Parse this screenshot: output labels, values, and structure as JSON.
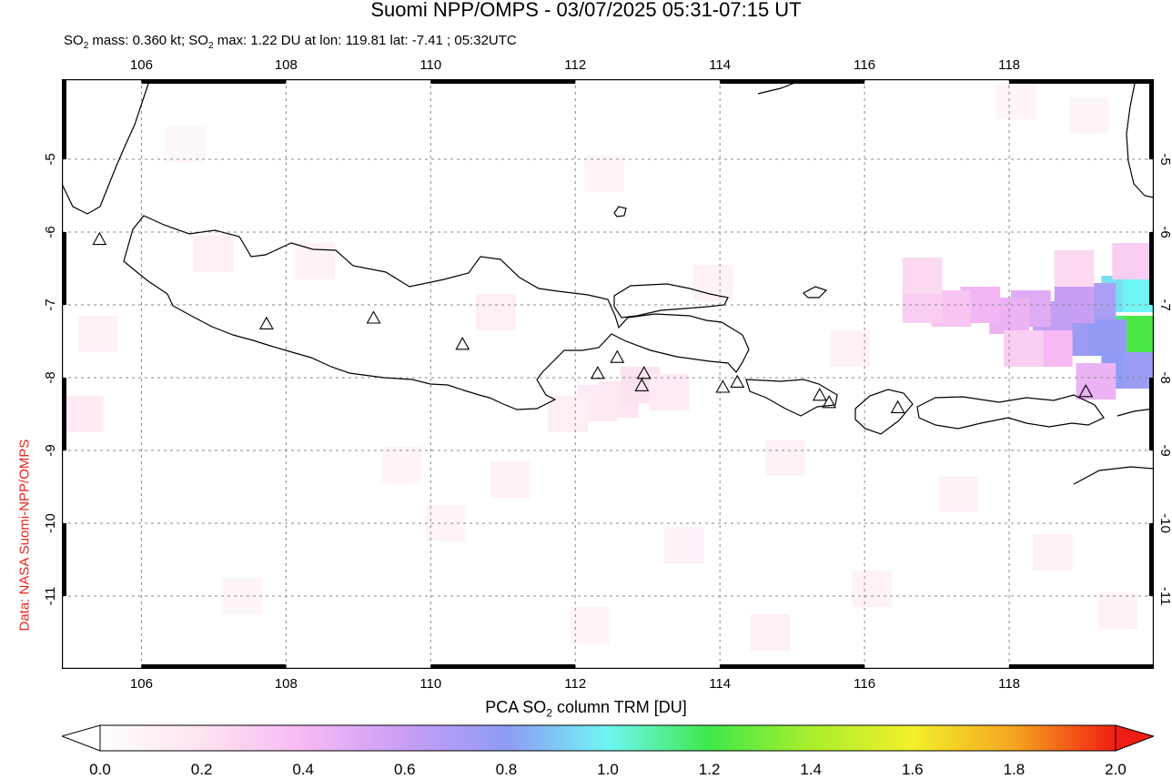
{
  "title": "Suomi NPP/OMPS - 03/07/2025 05:31-07:15 UT",
  "subtitle": {
    "mass_prefix": "SO",
    "mass_sub": "2",
    "mass_text": " mass: 0.360 kt; SO",
    "max_sub": "2",
    "max_text": " max: 1.22 DU at lon: 119.81 lat: -7.41 ; 05:32UTC"
  },
  "credit": "Data: NASA Suomi-NPP/OMPS",
  "map": {
    "lon_range": [
      104.9,
      120.0
    ],
    "lat_range": [
      -12.0,
      -3.9
    ],
    "lon_ticks": [
      106,
      108,
      110,
      112,
      114,
      116,
      118
    ],
    "lat_ticks": [
      -5,
      -6,
      -7,
      -8,
      -9,
      -10,
      -11
    ],
    "grid": true,
    "volcanoes": [
      {
        "lon": 105.42,
        "lat": -6.1
      },
      {
        "lon": 107.73,
        "lat": -7.26
      },
      {
        "lon": 109.21,
        "lat": -7.18
      },
      {
        "lon": 110.44,
        "lat": -7.54
      },
      {
        "lon": 112.31,
        "lat": -7.94
      },
      {
        "lon": 112.58,
        "lat": -7.72
      },
      {
        "lon": 112.95,
        "lat": -7.94
      },
      {
        "lon": 112.92,
        "lat": -8.11
      },
      {
        "lon": 114.04,
        "lat": -8.13
      },
      {
        "lon": 114.24,
        "lat": -8.06
      },
      {
        "lon": 115.38,
        "lat": -8.24
      },
      {
        "lon": 115.51,
        "lat": -8.34
      },
      {
        "lon": 116.46,
        "lat": -8.41
      },
      {
        "lon": 119.06,
        "lat": -8.19
      }
    ],
    "so2_cells": [
      {
        "lon": 119.55,
        "lat": -6.85,
        "v": 0.95
      },
      {
        "lon": 119.85,
        "lat": -6.85,
        "v": 1.0
      },
      {
        "lon": 119.55,
        "lat": -7.4,
        "v": 1.15
      },
      {
        "lon": 119.85,
        "lat": -7.4,
        "v": 1.22
      },
      {
        "lon": 119.05,
        "lat": -7.45,
        "v": 0.75
      },
      {
        "lon": 119.35,
        "lat": -7.45,
        "v": 0.78
      },
      {
        "lon": 119.55,
        "lat": -7.9,
        "v": 0.8
      },
      {
        "lon": 119.85,
        "lat": -7.9,
        "v": 0.75
      },
      {
        "lon": 119.2,
        "lat": -6.95,
        "v": 0.7
      },
      {
        "lon": 118.9,
        "lat": -7.0,
        "v": 0.6
      },
      {
        "lon": 118.6,
        "lat": -7.2,
        "v": 0.62
      },
      {
        "lon": 118.3,
        "lat": -7.05,
        "v": 0.5
      },
      {
        "lon": 118.0,
        "lat": -7.15,
        "v": 0.45
      },
      {
        "lon": 117.6,
        "lat": -7.0,
        "v": 0.42
      },
      {
        "lon": 117.2,
        "lat": -7.05,
        "v": 0.35
      },
      {
        "lon": 116.8,
        "lat": -7.0,
        "v": 0.3
      },
      {
        "lon": 116.8,
        "lat": -6.6,
        "v": 0.25
      },
      {
        "lon": 118.6,
        "lat": -7.6,
        "v": 0.4
      },
      {
        "lon": 118.2,
        "lat": -7.6,
        "v": 0.3
      },
      {
        "lon": 119.2,
        "lat": -8.05,
        "v": 0.45
      },
      {
        "lon": 118.9,
        "lat": -6.5,
        "v": 0.25
      },
      {
        "lon": 119.7,
        "lat": -6.4,
        "v": 0.3
      },
      {
        "lon": 112.6,
        "lat": -8.3,
        "v": 0.18
      },
      {
        "lon": 112.9,
        "lat": -8.1,
        "v": 0.2
      },
      {
        "lon": 112.3,
        "lat": -8.35,
        "v": 0.15
      },
      {
        "lon": 111.9,
        "lat": -8.5,
        "v": 0.12
      },
      {
        "lon": 113.3,
        "lat": -8.2,
        "v": 0.14
      },
      {
        "lon": 110.9,
        "lat": -7.1,
        "v": 0.12
      },
      {
        "lon": 108.4,
        "lat": -6.4,
        "v": 0.1
      },
      {
        "lon": 107.0,
        "lat": -6.3,
        "v": 0.12
      },
      {
        "lon": 105.4,
        "lat": -7.4,
        "v": 0.1
      },
      {
        "lon": 105.2,
        "lat": -8.5,
        "v": 0.15
      },
      {
        "lon": 112.4,
        "lat": -5.2,
        "v": 0.08
      },
      {
        "lon": 113.9,
        "lat": -6.7,
        "v": 0.1
      },
      {
        "lon": 117.3,
        "lat": -9.6,
        "v": 0.1
      },
      {
        "lon": 116.1,
        "lat": -10.9,
        "v": 0.09
      },
      {
        "lon": 113.5,
        "lat": -10.3,
        "v": 0.1
      },
      {
        "lon": 114.7,
        "lat": -11.5,
        "v": 0.12
      },
      {
        "lon": 110.2,
        "lat": -10.0,
        "v": 0.08
      },
      {
        "lon": 109.6,
        "lat": -9.2,
        "v": 0.08
      },
      {
        "lon": 107.4,
        "lat": -11.0,
        "v": 0.07
      },
      {
        "lon": 118.6,
        "lat": -10.4,
        "v": 0.1
      },
      {
        "lon": 119.5,
        "lat": -11.2,
        "v": 0.09
      },
      {
        "lon": 118.1,
        "lat": -4.2,
        "v": 0.08
      },
      {
        "lon": 119.1,
        "lat": -4.4,
        "v": 0.07
      },
      {
        "lon": 106.6,
        "lat": -4.8,
        "v": 0.06
      },
      {
        "lon": 115.8,
        "lat": -7.6,
        "v": 0.09
      },
      {
        "lon": 114.9,
        "lat": -9.1,
        "v": 0.1
      },
      {
        "lon": 111.1,
        "lat": -9.4,
        "v": 0.1
      },
      {
        "lon": 112.2,
        "lat": -11.4,
        "v": 0.08
      }
    ]
  },
  "colorbar": {
    "label_prefix": "PCA SO",
    "label_sub": "2",
    "label_suffix": " column TRM [DU]",
    "min": 0.0,
    "max": 2.0,
    "ticks": [
      "0.0",
      "0.2",
      "0.4",
      "0.6",
      "0.8",
      "1.0",
      "1.2",
      "1.4",
      "1.6",
      "1.8",
      "2.0"
    ],
    "stops": [
      "#ffffff",
      "#fde3f0",
      "#f6b9f3",
      "#c89ef5",
      "#8f9bf5",
      "#6ff5f3",
      "#3fe84a",
      "#a9ee2c",
      "#f2f02a",
      "#f5a51f",
      "#f01d12"
    ]
  }
}
